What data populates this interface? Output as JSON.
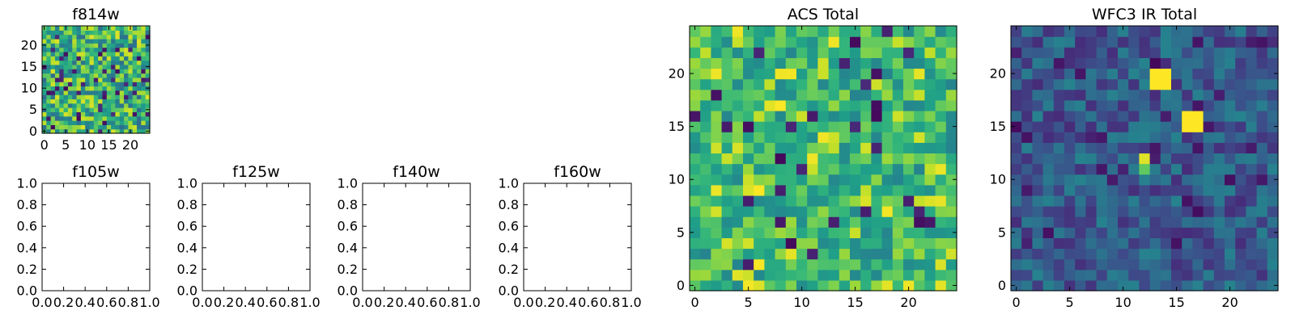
{
  "chart_data": [
    {
      "type": "heatmap",
      "title": "f814w",
      "colormap": "viridis",
      "xticks": [
        0,
        5,
        10,
        15,
        20
      ],
      "yticks": [
        0,
        5,
        10,
        15,
        20
      ],
      "xlim": [
        -0.5,
        24.5
      ],
      "ylim": [
        -0.5,
        24.5
      ],
      "grid_size": 25,
      "value_range": [
        0,
        1
      ],
      "seed": 814,
      "pixel_values": "unreadable noise; mostly mid-to-high values (green/yellow) with scattered dark pixels"
    },
    {
      "type": "empty",
      "title": "f105w",
      "xticks": [
        "0.0",
        "0.2",
        "0.4",
        "0.6",
        "0.8",
        "1.0"
      ],
      "yticks": [
        "0.0",
        "0.2",
        "0.4",
        "0.6",
        "0.8",
        "1.0"
      ],
      "xlim": [
        0,
        1
      ],
      "ylim": [
        0,
        1
      ]
    },
    {
      "type": "empty",
      "title": "f125w",
      "xticks": [
        "0.0",
        "0.2",
        "0.4",
        "0.6",
        "0.8",
        "1.0"
      ],
      "yticks": [
        "0.0",
        "0.2",
        "0.4",
        "0.6",
        "0.8",
        "1.0"
      ],
      "xlim": [
        0,
        1
      ],
      "ylim": [
        0,
        1
      ]
    },
    {
      "type": "empty",
      "title": "f140w",
      "xticks": [
        "0.0",
        "0.2",
        "0.4",
        "0.6",
        "0.8",
        "1.0"
      ],
      "yticks": [
        "0.0",
        "0.2",
        "0.4",
        "0.6",
        "0.8",
        "1.0"
      ],
      "xlim": [
        0,
        1
      ],
      "ylim": [
        0,
        1
      ]
    },
    {
      "type": "empty",
      "title": "f160w",
      "xticks": [
        "0.0",
        "0.2",
        "0.4",
        "0.6",
        "0.8",
        "1.0"
      ],
      "yticks": [
        "0.0",
        "0.2",
        "0.4",
        "0.6",
        "0.8",
        "1.0"
      ],
      "xlim": [
        0,
        1
      ],
      "ylim": [
        0,
        1
      ]
    },
    {
      "type": "heatmap",
      "title": "ACS Total",
      "colormap": "viridis",
      "xticks": [
        0,
        5,
        10,
        15,
        20
      ],
      "yticks": [
        0,
        5,
        10,
        15,
        20
      ],
      "xlim": [
        -0.5,
        24.5
      ],
      "ylim": [
        -0.5,
        24.5
      ],
      "grid_size": 25,
      "value_range": [
        0,
        1
      ],
      "seed": 1234,
      "pixel_values": "unreadable noise; mostly green/yellow-green with scattered dark purple pixels"
    },
    {
      "type": "heatmap",
      "title": "WFC3 IR Total",
      "colormap": "viridis",
      "xticks": [
        0,
        5,
        10,
        15,
        20
      ],
      "yticks": [
        0,
        5,
        10,
        15,
        20
      ],
      "xlim": [
        -0.5,
        24.5
      ],
      "ylim": [
        -0.5,
        24.5
      ],
      "grid_size": 25,
      "value_range": [
        0,
        1
      ],
      "seed": 999,
      "pixel_values": "unreadable noise; mostly dark blue/teal with a few bright yellow sources",
      "bright_sources": [
        {
          "col": 13,
          "row": 19,
          "width": 2,
          "height": 2,
          "value": 1.0
        },
        {
          "col": 16,
          "row": 15,
          "width": 2,
          "height": 2,
          "value": 1.0
        },
        {
          "col": 12,
          "row": 12,
          "width": 1,
          "height": 1,
          "value": 0.95
        },
        {
          "col": 12,
          "row": 11,
          "width": 1,
          "height": 1,
          "value": 0.75
        }
      ]
    }
  ]
}
